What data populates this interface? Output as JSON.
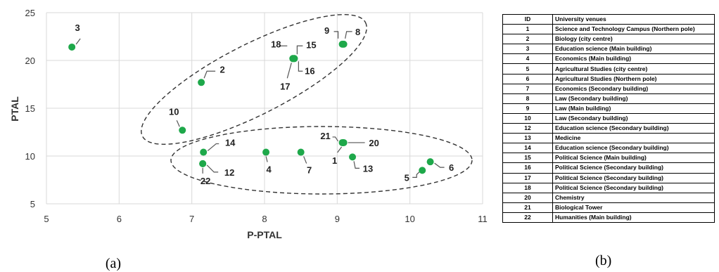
{
  "chart_data": {
    "type": "scatter",
    "xlabel": "P-PTAL",
    "ylabel": "PTAL",
    "xlim": [
      5,
      11
    ],
    "ylim": [
      5,
      25
    ],
    "xticks": [
      "5",
      "6",
      "7",
      "8",
      "9",
      "10",
      "11"
    ],
    "yticks": [
      "5",
      "10",
      "15",
      "20",
      "25"
    ],
    "grid": true,
    "marker_color": "#1ea84a",
    "points": [
      {
        "label": "3",
        "x": 5.35,
        "y": 21.4
      },
      {
        "label": "2",
        "x": 7.13,
        "y": 17.7
      },
      {
        "label": "10",
        "x": 6.87,
        "y": 12.7
      },
      {
        "label": "18",
        "x": 8.39,
        "y": 20.2
      },
      {
        "label": "15",
        "x": 8.41,
        "y": 20.2
      },
      {
        "label": "16",
        "x": 8.41,
        "y": 20.2
      },
      {
        "label": "17",
        "x": 8.39,
        "y": 20.2
      },
      {
        "label": "9",
        "x": 9.07,
        "y": 21.7
      },
      {
        "label": "8",
        "x": 9.09,
        "y": 21.7
      },
      {
        "label": "14",
        "x": 7.16,
        "y": 10.4
      },
      {
        "label": "12",
        "x": 7.15,
        "y": 9.2
      },
      {
        "label": "22",
        "x": 7.15,
        "y": 9.2
      },
      {
        "label": "4",
        "x": 8.02,
        "y": 10.4
      },
      {
        "label": "7",
        "x": 8.5,
        "y": 10.4
      },
      {
        "label": "21",
        "x": 9.07,
        "y": 11.4
      },
      {
        "label": "20",
        "x": 9.09,
        "y": 11.4
      },
      {
        "label": "1",
        "x": 9.08,
        "y": 11.4
      },
      {
        "label": "13",
        "x": 9.21,
        "y": 9.9
      },
      {
        "label": "5",
        "x": 10.17,
        "y": 8.5
      },
      {
        "label": "6",
        "x": 10.28,
        "y": 9.4
      }
    ]
  },
  "panels": {
    "a": "(a)",
    "b": "(b)"
  },
  "table": {
    "headers": [
      "ID",
      "University venues"
    ],
    "rows": [
      [
        "1",
        "Science and Technology Campus (Northern pole)"
      ],
      [
        "2",
        "Biology (city centre)"
      ],
      [
        "3",
        "Education science (Main building)"
      ],
      [
        "4",
        "Economics (Main building)"
      ],
      [
        "5",
        "Agricultural Studies (city centre)"
      ],
      [
        "6",
        "Agricultural Studies (Northern pole)"
      ],
      [
        "7",
        "Economics (Secondary building)"
      ],
      [
        "8",
        "Law (Secondary building)"
      ],
      [
        "9",
        "Law (Main building)"
      ],
      [
        "10",
        "Law (Secondary building)"
      ],
      [
        "12",
        "Education science (Secondary building)"
      ],
      [
        "13",
        "Medicine"
      ],
      [
        "14",
        "Education science (Secondary building)"
      ],
      [
        "15",
        "Political Science (Main building)"
      ],
      [
        "16",
        "Political Science (Secondary building)"
      ],
      [
        "17",
        "Political Science (Secondary building)"
      ],
      [
        "18",
        "Political Science (Secondary building)"
      ],
      [
        "20",
        "Chemistry"
      ],
      [
        "21",
        "Biological Tower"
      ],
      [
        "22",
        "Humanities (Main building)"
      ]
    ]
  }
}
